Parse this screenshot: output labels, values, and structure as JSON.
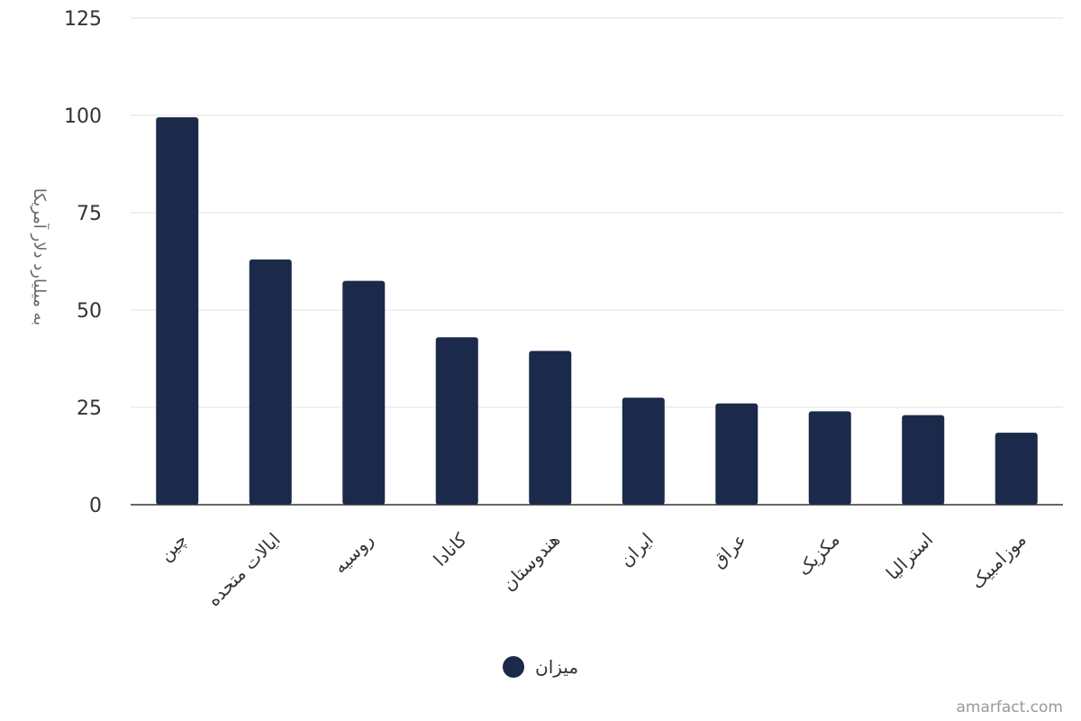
{
  "chart_data": {
    "type": "bar",
    "categories": [
      "چین",
      "ایالات متحده",
      "روسیه",
      "کانادا",
      "هندوستان",
      "ایران",
      "عراق",
      "مکزیک",
      "استرالیا",
      "موزامبیک"
    ],
    "series": [
      {
        "name": "میزان",
        "values": [
          99.5,
          63,
          57.5,
          43,
          39.5,
          27.5,
          26,
          24,
          23,
          18.5
        ]
      }
    ],
    "ylabel": "به میلیارد دلار آمریکا",
    "ylim": [
      0,
      125
    ],
    "yticks": [
      0,
      25,
      50,
      75,
      100,
      125
    ],
    "grid": true,
    "legend_position": "bottom",
    "bar_color": "#1b2a4a"
  },
  "credit": "amarfact.com"
}
